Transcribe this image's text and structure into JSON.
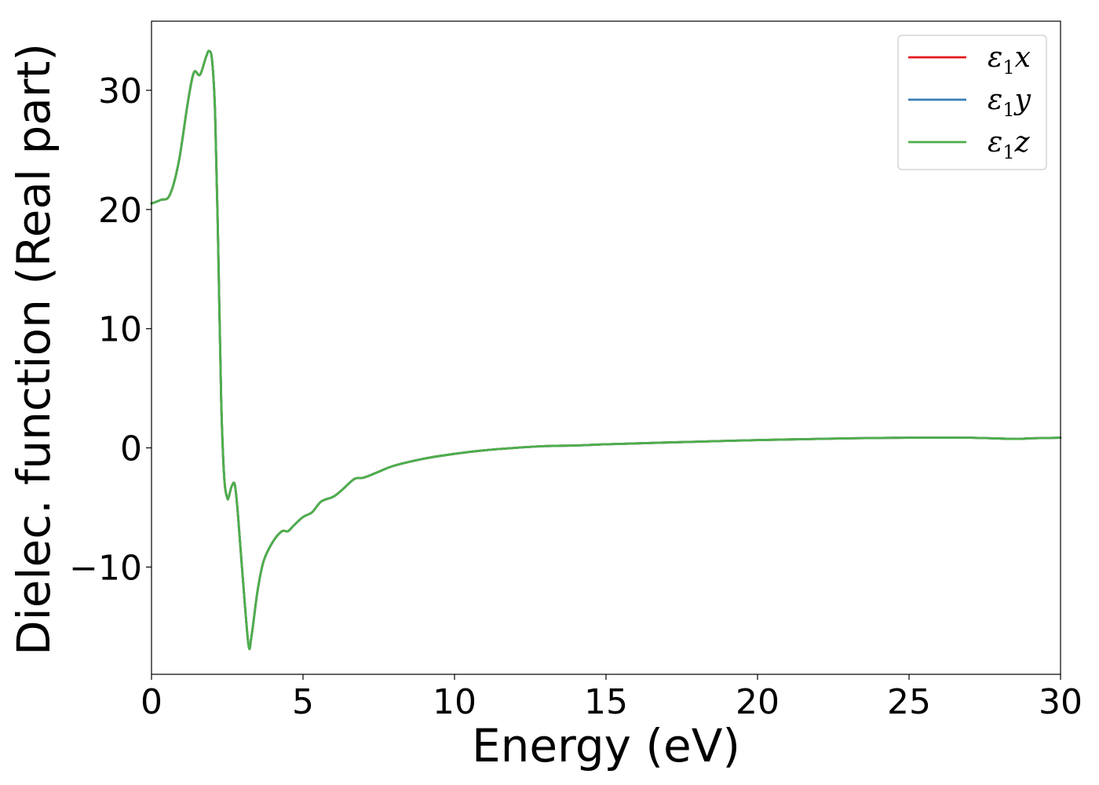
{
  "chart_data": {
    "type": "line",
    "title": "",
    "xlabel": "Energy (eV)",
    "ylabel": "Dielec. function (Real part)",
    "xlim": [
      0,
      30
    ],
    "ylim": [
      -19.0,
      35.8
    ],
    "xticks": [
      0,
      5,
      10,
      15,
      20,
      25,
      30
    ],
    "xtick_labels": [
      "0",
      "5",
      "10",
      "15",
      "20",
      "25",
      "30"
    ],
    "yticks": [
      -10,
      0,
      10,
      20,
      30
    ],
    "ytick_labels": [
      "−10",
      "0",
      "10",
      "20",
      "30"
    ],
    "grid": false,
    "legend_position": "top-right",
    "series": [
      {
        "name": "ε1x",
        "legend_symbol": "ε",
        "legend_subscript": "1",
        "legend_suffix": "x",
        "color": "#e41a1c",
        "x": [
          0,
          0.3,
          0.6,
          0.9,
          1.2,
          1.4,
          1.6,
          1.8,
          1.9,
          2.0,
          2.1,
          2.2,
          2.3,
          2.4,
          2.5,
          2.55,
          2.65,
          2.75,
          2.85,
          3.0,
          3.2,
          3.3,
          3.5,
          3.7,
          4.0,
          4.3,
          4.5,
          4.7,
          5.0,
          5.3,
          5.6,
          6.0,
          6.3,
          6.7,
          7.0,
          7.5,
          8.0,
          9.0,
          10.0,
          11.0,
          12.0,
          13.0,
          14.0,
          15.0,
          17.0,
          20.0,
          23.0,
          25.0,
          27.0,
          28.5,
          29.0,
          30.0
        ],
        "y": [
          20.5,
          20.8,
          21.2,
          24.0,
          29.0,
          31.5,
          31.3,
          32.8,
          33.3,
          32.5,
          28.0,
          17.0,
          4.0,
          -2.5,
          -4.2,
          -4.1,
          -3.2,
          -3.1,
          -5.5,
          -10.5,
          -16.5,
          -15.8,
          -12.0,
          -9.5,
          -7.9,
          -7.0,
          -7.0,
          -6.5,
          -5.8,
          -5.4,
          -4.5,
          -4.1,
          -3.5,
          -2.6,
          -2.5,
          -2.0,
          -1.5,
          -0.9,
          -0.5,
          -0.2,
          0.0,
          0.15,
          0.2,
          0.3,
          0.45,
          0.65,
          0.8,
          0.85,
          0.85,
          0.75,
          0.8,
          0.85
        ]
      },
      {
        "name": "ε1y",
        "legend_symbol": "ε",
        "legend_subscript": "1",
        "legend_suffix": "y",
        "color": "#377eb8",
        "x": [
          0,
          0.3,
          0.6,
          0.9,
          1.2,
          1.4,
          1.6,
          1.8,
          1.9,
          2.0,
          2.1,
          2.2,
          2.3,
          2.4,
          2.5,
          2.55,
          2.65,
          2.75,
          2.85,
          3.0,
          3.2,
          3.3,
          3.5,
          3.7,
          4.0,
          4.3,
          4.5,
          4.7,
          5.0,
          5.3,
          5.6,
          6.0,
          6.3,
          6.7,
          7.0,
          7.5,
          8.0,
          9.0,
          10.0,
          11.0,
          12.0,
          13.0,
          14.0,
          15.0,
          17.0,
          20.0,
          23.0,
          25.0,
          27.0,
          28.5,
          29.0,
          30.0
        ],
        "y": [
          20.5,
          20.8,
          21.2,
          24.0,
          29.0,
          31.5,
          31.3,
          32.8,
          33.3,
          32.5,
          28.0,
          17.0,
          4.0,
          -2.5,
          -4.2,
          -4.1,
          -3.2,
          -3.1,
          -5.5,
          -10.5,
          -16.5,
          -15.8,
          -12.0,
          -9.5,
          -7.9,
          -7.0,
          -7.0,
          -6.5,
          -5.8,
          -5.4,
          -4.5,
          -4.1,
          -3.5,
          -2.6,
          -2.5,
          -2.0,
          -1.5,
          -0.9,
          -0.5,
          -0.2,
          0.0,
          0.15,
          0.2,
          0.3,
          0.45,
          0.65,
          0.8,
          0.85,
          0.85,
          0.75,
          0.8,
          0.85
        ]
      },
      {
        "name": "ε1z",
        "legend_symbol": "ε",
        "legend_subscript": "1",
        "legend_suffix": "z",
        "color": "#4daf4a",
        "x": [
          0,
          0.3,
          0.6,
          0.9,
          1.2,
          1.4,
          1.6,
          1.8,
          1.9,
          2.0,
          2.1,
          2.2,
          2.3,
          2.4,
          2.5,
          2.55,
          2.65,
          2.75,
          2.85,
          3.0,
          3.2,
          3.3,
          3.5,
          3.7,
          4.0,
          4.3,
          4.5,
          4.7,
          5.0,
          5.3,
          5.6,
          6.0,
          6.3,
          6.7,
          7.0,
          7.5,
          8.0,
          9.0,
          10.0,
          11.0,
          12.0,
          13.0,
          14.0,
          15.0,
          17.0,
          20.0,
          23.0,
          25.0,
          27.0,
          28.5,
          29.0,
          30.0
        ],
        "y": [
          20.5,
          20.8,
          21.2,
          24.0,
          29.0,
          31.5,
          31.3,
          32.8,
          33.3,
          32.5,
          28.0,
          17.0,
          4.0,
          -2.5,
          -4.2,
          -4.1,
          -3.2,
          -3.1,
          -5.5,
          -10.5,
          -16.5,
          -15.8,
          -12.0,
          -9.5,
          -7.9,
          -7.0,
          -7.0,
          -6.5,
          -5.8,
          -5.4,
          -4.5,
          -4.1,
          -3.5,
          -2.6,
          -2.5,
          -2.0,
          -1.5,
          -0.9,
          -0.5,
          -0.2,
          0.0,
          0.15,
          0.2,
          0.3,
          0.45,
          0.65,
          0.8,
          0.85,
          0.85,
          0.75,
          0.8,
          0.85
        ]
      }
    ]
  }
}
